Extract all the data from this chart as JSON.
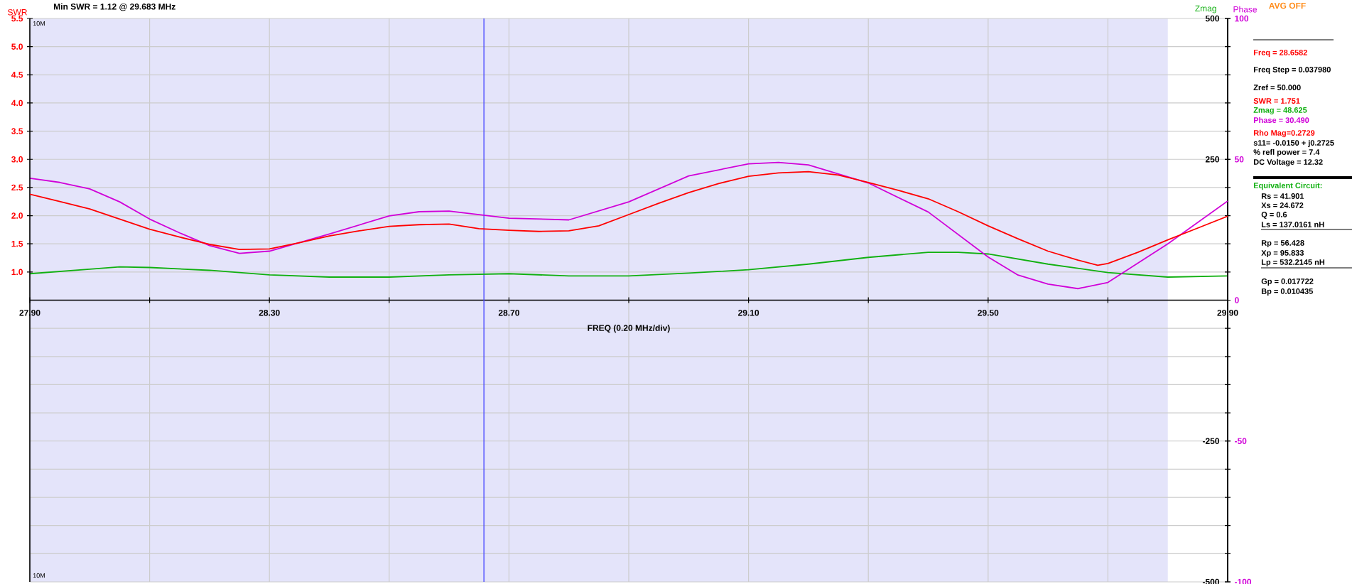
{
  "chart_data": {
    "type": "line",
    "title": "Min SWR =   1.12 @  29.683 MHz",
    "xlabel": "FREQ (0.20 MHz/div)",
    "ylabel": "SWR",
    "y2label": "Zmag",
    "y3label": "Phase",
    "xlim": [
      27.9,
      29.9
    ],
    "xticks": [
      {
        "value": 27.9,
        "label": "27.90"
      },
      {
        "value": 28.1,
        "label": null
      },
      {
        "value": 28.3,
        "label": "28.30"
      },
      {
        "value": 28.5,
        "label": null
      },
      {
        "value": 28.7,
        "label": "28.70"
      },
      {
        "value": 28.9,
        "label": null
      },
      {
        "value": 29.1,
        "label": "29.10"
      },
      {
        "value": 29.3,
        "label": null
      },
      {
        "value": 29.5,
        "label": "29.50"
      },
      {
        "value": 29.7,
        "label": null
      },
      {
        "value": 29.9,
        "label": "29.90"
      }
    ],
    "ylim": [
      -4.5,
      5.5
    ],
    "yticks": [
      {
        "value": 1.0,
        "label": "1.0"
      },
      {
        "value": 1.5,
        "label": "1.5"
      },
      {
        "value": 2.0,
        "label": "2.0"
      },
      {
        "value": 2.5,
        "label": "2.5"
      },
      {
        "value": 3.0,
        "label": "3.0"
      },
      {
        "value": 3.5,
        "label": "3.5"
      },
      {
        "value": 4.0,
        "label": "4.0"
      },
      {
        "value": 4.5,
        "label": "4.5"
      },
      {
        "value": 5.0,
        "label": "5.0"
      },
      {
        "value": 5.5,
        "label": "5.5"
      }
    ],
    "y2lim": [
      -500,
      500
    ],
    "y2ticks": [
      -500,
      {
        "value": -450,
        "label": null
      },
      {
        "value": -400,
        "label": null
      },
      {
        "value": -350,
        "label": null
      },
      {
        "value": -300,
        "label": null
      },
      -250,
      {
        "value": -200,
        "label": null
      },
      {
        "value": -150,
        "label": null
      },
      {
        "value": -100,
        "label": null
      },
      {
        "value": -50,
        "label": null
      },
      {
        "value": 0,
        "label": null
      },
      {
        "value": 50,
        "label": null
      },
      {
        "value": 100,
        "label": null
      },
      {
        "value": 150,
        "label": null
      },
      {
        "value": 200,
        "label": null
      },
      250,
      {
        "value": 300,
        "label": null
      },
      {
        "value": 350,
        "label": null
      },
      {
        "value": 400,
        "label": null
      },
      {
        "value": 450,
        "label": null
      },
      500
    ],
    "y3lim": [
      -100,
      100
    ],
    "y3ticks": [
      -100,
      -50,
      0,
      50,
      100
    ],
    "grid": true,
    "series": [
      {
        "color": "#ff0000",
        "axis": "y",
        "x": [
          27.9,
          27.95,
          28.0,
          28.05,
          28.1,
          28.15,
          28.2,
          28.25,
          28.3,
          28.35,
          28.4,
          28.45,
          28.5,
          28.55,
          28.6,
          28.65,
          28.7,
          28.75,
          28.8,
          28.85,
          28.9,
          28.95,
          29.0,
          29.05,
          29.1,
          29.15,
          29.2,
          29.25,
          29.3,
          29.35,
          29.4,
          29.45,
          29.5,
          29.55,
          29.6,
          29.65,
          29.683,
          29.7,
          29.75,
          29.8,
          29.85,
          29.9
        ],
        "values": [
          2.38,
          2.25,
          2.12,
          1.94,
          1.76,
          1.62,
          1.49,
          1.4,
          1.41,
          1.52,
          1.64,
          1.73,
          1.81,
          1.84,
          1.85,
          1.77,
          1.74,
          1.72,
          1.73,
          1.82,
          2.02,
          2.22,
          2.41,
          2.57,
          2.7,
          2.76,
          2.78,
          2.72,
          2.59,
          2.45,
          2.3,
          2.07,
          1.82,
          1.59,
          1.37,
          1.21,
          1.12,
          1.15,
          1.35,
          1.57,
          1.78,
          1.99
        ]
      },
      {
        "color": "#10b010",
        "axis": "y2",
        "x": [
          27.9,
          28.0,
          28.05,
          28.1,
          28.2,
          28.3,
          28.4,
          28.5,
          28.6,
          28.7,
          28.8,
          28.9,
          29.0,
          29.1,
          29.2,
          29.3,
          29.4,
          29.45,
          29.5,
          29.6,
          29.7,
          29.8,
          29.9
        ],
        "values": [
          47,
          55,
          59,
          58,
          53,
          45,
          41,
          41,
          45,
          47,
          43,
          43,
          48,
          54,
          64,
          76,
          85,
          85,
          82,
          64,
          49,
          41,
          43
        ]
      },
      {
        "color": "#d000d8",
        "axis": "y3",
        "x": [
          27.9,
          27.95,
          28.0,
          28.05,
          28.1,
          28.15,
          28.2,
          28.25,
          28.3,
          28.4,
          28.5,
          28.55,
          28.6,
          28.7,
          28.8,
          28.9,
          29.0,
          29.1,
          29.15,
          29.2,
          29.3,
          29.4,
          29.5,
          29.55,
          29.6,
          29.65,
          29.7,
          29.8,
          29.9
        ],
        "values": [
          43.3,
          41.8,
          39.5,
          34.9,
          28.8,
          23.9,
          19.4,
          16.6,
          17.4,
          23.5,
          29.9,
          31.4,
          31.6,
          29.1,
          28.5,
          34.9,
          44.1,
          48.4,
          48.9,
          48.0,
          41.6,
          31.3,
          15.3,
          8.9,
          5.7,
          4.1,
          6.3,
          20.0,
          35.2
        ]
      }
    ],
    "bands": [
      {
        "axis": "x",
        "from": 27.9,
        "to": 29.8,
        "color": "#e4e4fa"
      }
    ],
    "ref_lines": [
      {
        "axis": "x",
        "value": 28.6582,
        "color": "#4a4aff"
      }
    ],
    "annotations": [
      "AVG OFF",
      "10M",
      "10M",
      "Freq = 28.6582",
      "Freq Step = 0.037980",
      "Zref =   50.000",
      "SWR  =   1.751",
      "Zmag =   48.625",
      "Phase =   30.490",
      "Rho Mag=0.2729",
      "s11= -0.0150 + j0.2725",
      "% refl power =  7.4",
      "DC Voltage =  12.32",
      "Equivalent Circuit:",
      "Rs =   41.901",
      "Xs =   24.672",
      "Q =  0.6",
      "Ls =  137.0161  nH",
      "Rp =   56.428",
      "Xp =   95.833",
      "Lp =  532.2145  nH",
      "Gp =  0.017722",
      "Bp =  0.010435"
    ]
  }
}
